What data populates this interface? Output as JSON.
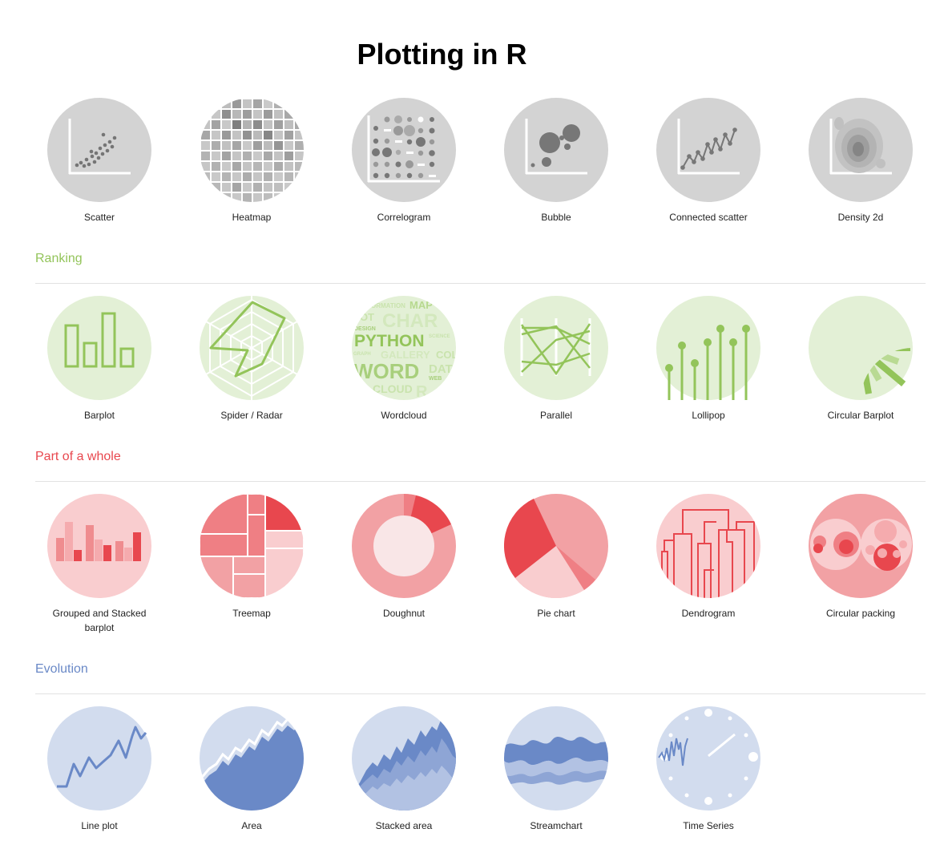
{
  "page": {
    "title": "Plotting in R"
  },
  "colors": {
    "grey": "#d3d3d3",
    "green": "#93c45a",
    "red": "#e8474e",
    "blue": "#6a89c7"
  },
  "sections": {
    "correlation": {
      "items": [
        {
          "label": "Scatter",
          "icon": "scatter-icon"
        },
        {
          "label": "Heatmap",
          "icon": "heatmap-icon"
        },
        {
          "label": "Correlogram",
          "icon": "correlogram-icon"
        },
        {
          "label": "Bubble",
          "icon": "bubble-icon"
        },
        {
          "label": "Connected scatter",
          "icon": "connected-scatter-icon"
        },
        {
          "label": "Density 2d",
          "icon": "density-2d-icon"
        }
      ]
    },
    "ranking": {
      "title": "Ranking",
      "color": "#93c45a",
      "items": [
        {
          "label": "Barplot",
          "icon": "barplot-icon"
        },
        {
          "label": "Spider / Radar",
          "icon": "spider-radar-icon"
        },
        {
          "label": "Wordcloud",
          "icon": "wordcloud-icon"
        },
        {
          "label": "Parallel",
          "icon": "parallel-icon"
        },
        {
          "label": "Lollipop",
          "icon": "lollipop-icon"
        },
        {
          "label": "Circular Barplot",
          "icon": "circular-barplot-icon"
        }
      ],
      "wordcloud_words": [
        "ORMATION",
        "MAP",
        "LOT",
        "CHAR",
        "DESIGN",
        "PYTHON",
        "SCIENCE",
        "GRAPH",
        "GALLERY",
        "COL",
        "WORD",
        "DAT",
        "WEB",
        "CLOUD",
        "R"
      ]
    },
    "part_of_whole": {
      "title": "Part of a whole",
      "color": "#e8474e",
      "items": [
        {
          "label": "Grouped and Stacked barplot",
          "icon": "grouped-stacked-barplot-icon"
        },
        {
          "label": "Treemap",
          "icon": "treemap-icon"
        },
        {
          "label": "Doughnut",
          "icon": "doughnut-icon"
        },
        {
          "label": "Pie chart",
          "icon": "pie-chart-icon"
        },
        {
          "label": "Dendrogram",
          "icon": "dendrogram-icon"
        },
        {
          "label": "Circular packing",
          "icon": "circular-packing-icon"
        }
      ]
    },
    "evolution": {
      "title": "Evolution",
      "color": "#6a89c7",
      "items": [
        {
          "label": "Line plot",
          "icon": "line-plot-icon"
        },
        {
          "label": "Area",
          "icon": "area-icon"
        },
        {
          "label": "Stacked area",
          "icon": "stacked-area-icon"
        },
        {
          "label": "Streamchart",
          "icon": "streamchart-icon"
        },
        {
          "label": "Time Series",
          "icon": "time-series-icon"
        }
      ]
    }
  }
}
